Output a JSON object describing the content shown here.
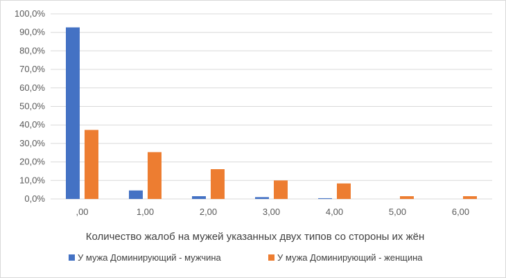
{
  "chart_data": {
    "type": "bar",
    "categories": [
      ",00",
      "1,00",
      "2,00",
      "3,00",
      "4,00",
      "5,00",
      "6,00"
    ],
    "series": [
      {
        "name": "У мужа Доминирующий - мужчина",
        "values": [
          92.7,
          4.6,
          1.5,
          1.0,
          0.4,
          0.0,
          0.0
        ],
        "color": "#4472C4"
      },
      {
        "name": "У мужа Доминирующий - женщина",
        "values": [
          37.3,
          25.3,
          16.1,
          10.0,
          8.4,
          1.5,
          1.5
        ],
        "color": "#ED7D31"
      }
    ],
    "xlabel": "Количество жалоб на мужей указанных двух типов со стороны их жён",
    "ylabel": "",
    "ylim": [
      0,
      100
    ],
    "yticks": [
      "0,0%",
      "10,0%",
      "20,0%",
      "30,0%",
      "40,0%",
      "50,0%",
      "60,0%",
      "70,0%",
      "80,0%",
      "90,0%",
      "100,0%"
    ],
    "grid": true,
    "legend_position": "bottom"
  }
}
